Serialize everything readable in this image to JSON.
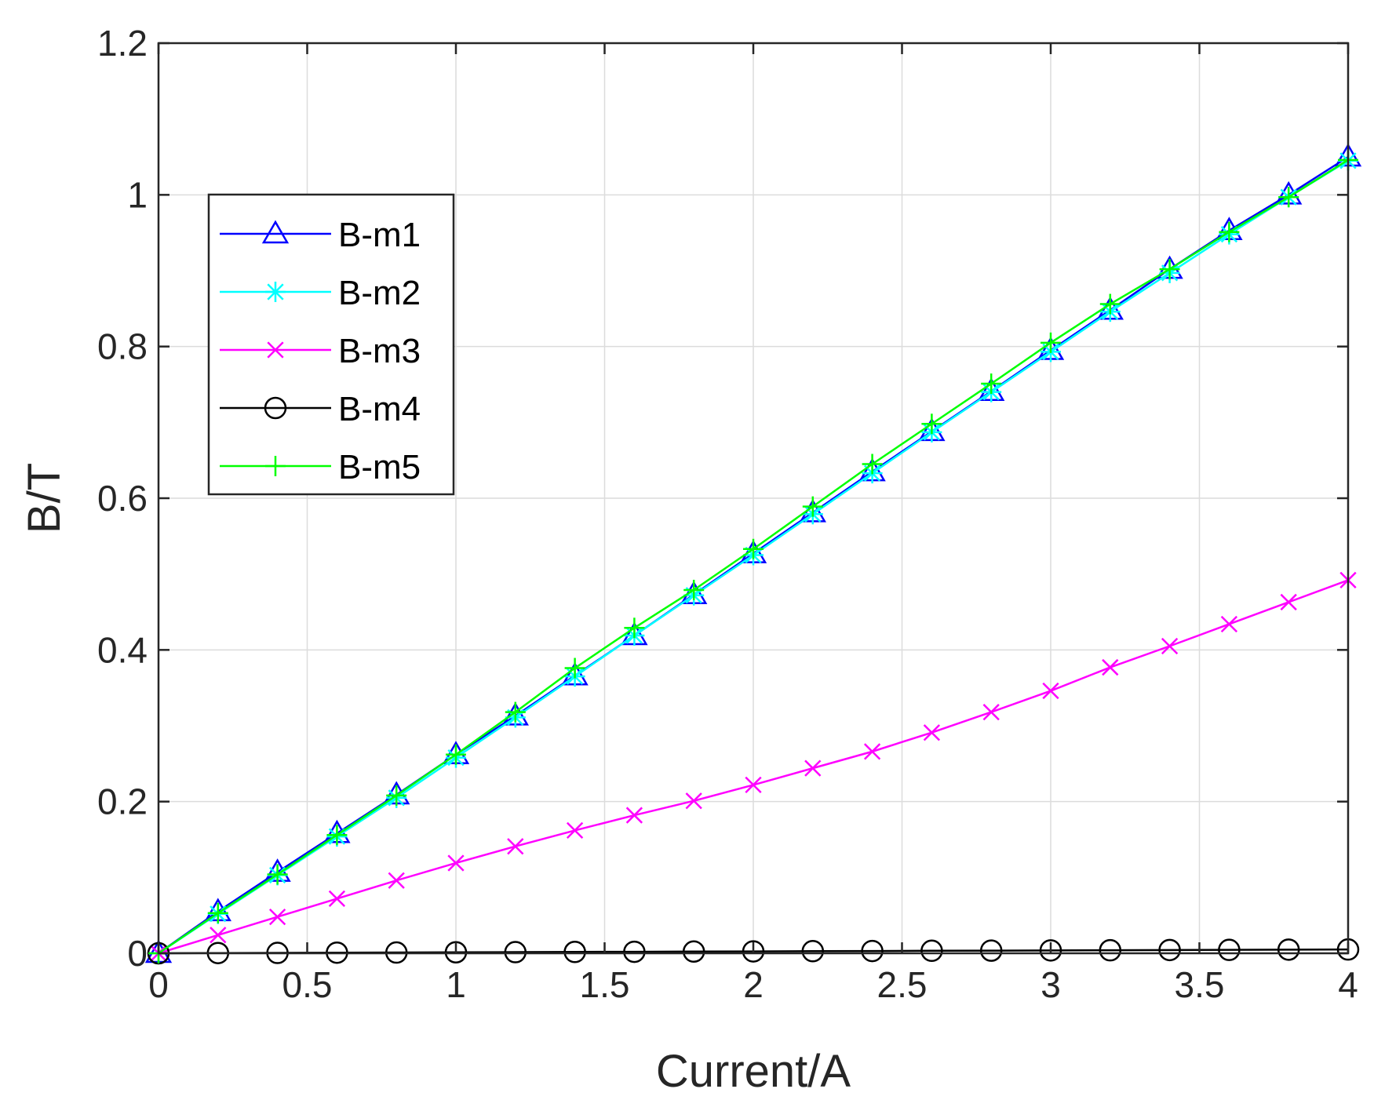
{
  "chart_data": {
    "type": "line",
    "xlabel": "Current/A",
    "ylabel": "B/T",
    "xlim": [
      0,
      4
    ],
    "ylim": [
      0,
      1.2
    ],
    "xticks": [
      "0",
      "0.5",
      "1",
      "1.5",
      "2",
      "2.5",
      "3",
      "3.5",
      "4"
    ],
    "yticks": [
      "0",
      "0.2",
      "0.4",
      "0.6",
      "0.8",
      "1",
      "1.2"
    ],
    "grid": true,
    "legend_position": "upper-left",
    "x": [
      0,
      0.2,
      0.4,
      0.6,
      0.8,
      1.0,
      1.2,
      1.4,
      1.6,
      1.8,
      2.0,
      2.2,
      2.4,
      2.6,
      2.8,
      3.0,
      3.2,
      3.4,
      3.6,
      3.8,
      4.0
    ],
    "series": [
      {
        "name": "B-m1",
        "color": "#0000ff",
        "marker": "triangle",
        "values": [
          0,
          0.055,
          0.107,
          0.158,
          0.209,
          0.262,
          0.313,
          0.366,
          0.419,
          0.473,
          0.527,
          0.581,
          0.635,
          0.688,
          0.741,
          0.795,
          0.848,
          0.902,
          0.953,
          1.0,
          1.05
        ]
      },
      {
        "name": "B-m2",
        "color": "#00ffff",
        "marker": "asterisk",
        "values": [
          0,
          0.052,
          0.103,
          0.154,
          0.205,
          0.258,
          0.311,
          0.365,
          0.419,
          0.472,
          0.525,
          0.579,
          0.633,
          0.687,
          0.74,
          0.793,
          0.846,
          0.897,
          0.948,
          0.997,
          1.045
        ]
      },
      {
        "name": "B-m3",
        "color": "#ff00ff",
        "marker": "x",
        "values": [
          0,
          0.024,
          0.048,
          0.072,
          0.096,
          0.119,
          0.141,
          0.162,
          0.182,
          0.201,
          0.222,
          0.244,
          0.266,
          0.291,
          0.318,
          0.346,
          0.377,
          0.405,
          0.434,
          0.463,
          0.492
        ]
      },
      {
        "name": "B-m4",
        "color": "#000000",
        "marker": "circle",
        "values": [
          0,
          0.0003,
          0.0005,
          0.0008,
          0.001,
          0.0013,
          0.0015,
          0.0018,
          0.002,
          0.0023,
          0.0025,
          0.0028,
          0.003,
          0.0033,
          0.0035,
          0.0038,
          0.004,
          0.0043,
          0.0045,
          0.0048,
          0.005
        ]
      },
      {
        "name": "B-m5",
        "color": "#00ff00",
        "marker": "plus",
        "values": [
          0,
          0.053,
          0.104,
          0.156,
          0.208,
          0.262,
          0.318,
          0.376,
          0.429,
          0.479,
          0.533,
          0.589,
          0.645,
          0.698,
          0.751,
          0.805,
          0.856,
          0.902,
          0.951,
          0.997,
          1.046
        ]
      }
    ]
  }
}
